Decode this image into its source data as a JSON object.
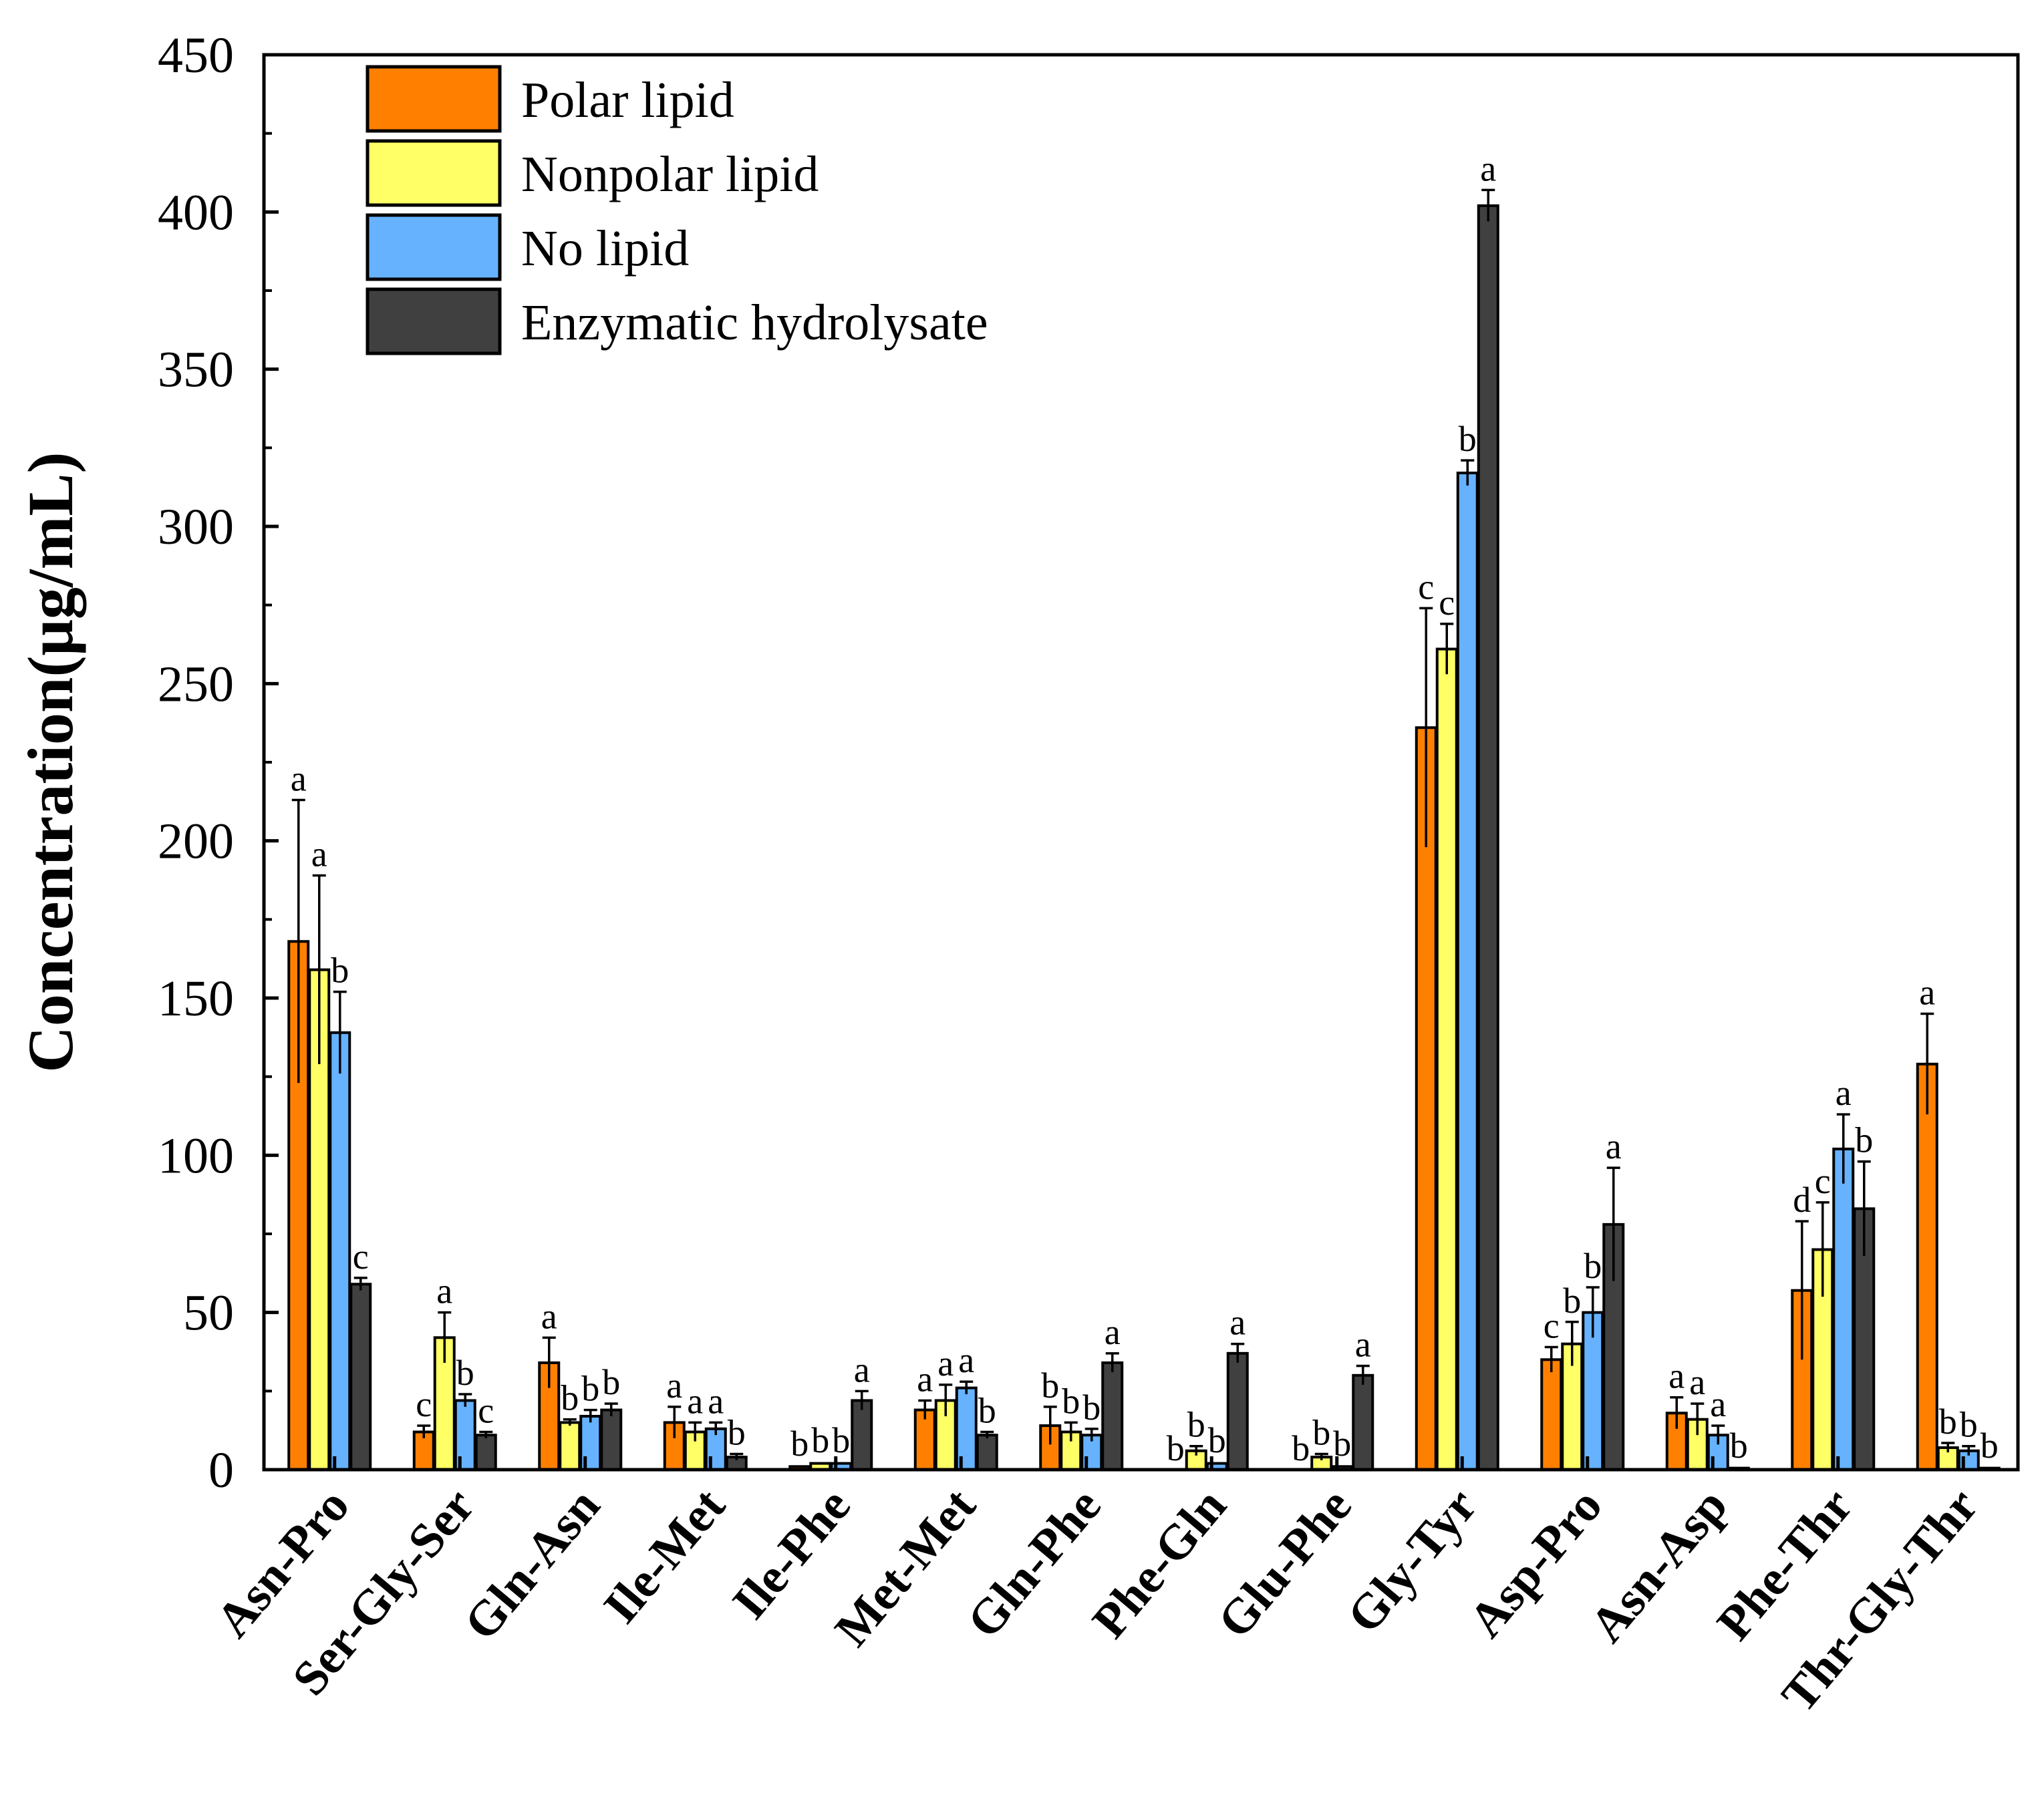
{
  "chart_data": {
    "type": "bar",
    "ylabel": "Concentration(μg/mL)",
    "xlabel": "",
    "ylim": [
      0,
      450
    ],
    "yticks": [
      0,
      50,
      100,
      150,
      200,
      250,
      300,
      350,
      400,
      450
    ],
    "grid": false,
    "legend_position": "top-left",
    "categories": [
      "Asn-Pro",
      "Ser-Gly-Ser",
      "Gln-Asn",
      "Ile-Met",
      "Ile-Phe",
      "Met-Met",
      "Gln-Phe",
      "Phe-Gln",
      "Glu-Phe",
      "Gly-Tyr",
      "Asp-Pro",
      "Asn-Asp",
      "Phe-Thr",
      "Thr-Gly-Thr"
    ],
    "series": [
      {
        "name": "Polar lipid",
        "color": "#FF8000",
        "values": [
          168,
          12,
          34,
          15,
          1,
          19,
          14,
          0,
          0,
          236,
          35,
          18,
          57,
          129
        ],
        "errors": [
          45,
          2,
          8,
          5,
          0.5,
          3,
          6,
          0,
          0,
          38,
          4,
          5,
          22,
          16
        ],
        "labels": [
          "a",
          "c",
          "a",
          "a",
          "b",
          "a",
          "b",
          "b",
          "b",
          "c",
          "c",
          "a",
          "d",
          "a"
        ]
      },
      {
        "name": "Nonpolar lipid",
        "color": "#FFFF66",
        "values": [
          159,
          42,
          15,
          12,
          2,
          22,
          12,
          6,
          4,
          261,
          40,
          16,
          70,
          7
        ],
        "errors": [
          30,
          8,
          1,
          3,
          0.5,
          5,
          3,
          1.5,
          1,
          8,
          7,
          5,
          15,
          1.5
        ],
        "labels": [
          "a",
          "a",
          "b",
          "a",
          "b",
          "a",
          "b",
          "b",
          "b",
          "c",
          "b",
          "a",
          "c",
          "b"
        ]
      },
      {
        "name": "No lipid",
        "color": "#66B2FF",
        "values": [
          139,
          22,
          17,
          13,
          2,
          26,
          11,
          2,
          1,
          317,
          50,
          11,
          102,
          6
        ],
        "errors": [
          13,
          2,
          2,
          2,
          0.5,
          2,
          2,
          0.5,
          0.5,
          4,
          8,
          3,
          11,
          1.5
        ],
        "labels": [
          "b",
          "b",
          "b",
          "a",
          "b",
          "a",
          "b",
          "b",
          "b",
          "b",
          "b",
          "a",
          "a",
          "b"
        ]
      },
      {
        "name": "Enzymatic hydrolysate",
        "color": "#404040",
        "values": [
          59,
          11,
          19,
          4,
          22,
          11,
          34,
          37,
          30,
          402,
          78,
          0.5,
          83,
          0.5
        ],
        "errors": [
          2,
          1,
          2,
          1,
          3,
          1,
          3,
          3,
          3,
          5,
          18,
          0.3,
          15,
          0.3
        ],
        "labels": [
          "c",
          "c",
          "b",
          "b",
          "a",
          "b",
          "a",
          "a",
          "a",
          "a",
          "a",
          "b",
          "b",
          "b"
        ]
      }
    ]
  }
}
